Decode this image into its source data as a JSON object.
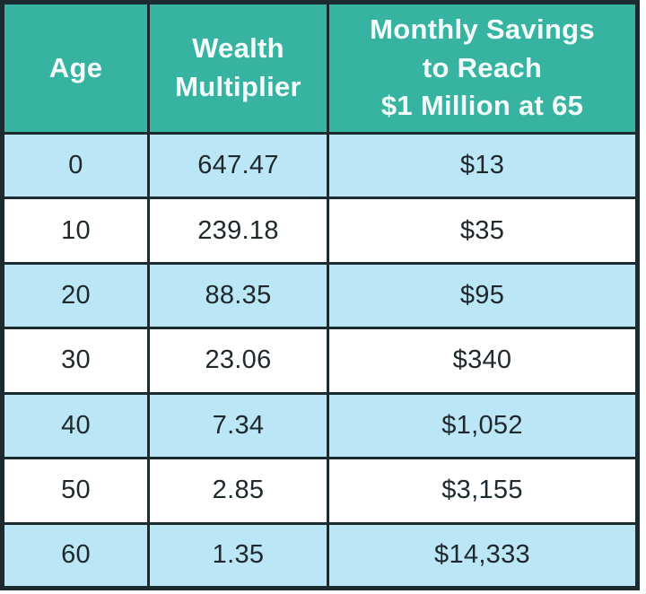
{
  "colors": {
    "header_bg": "#37b3a2",
    "header_text": "#f4fcfa",
    "row_alt_bg": "#bae6f6",
    "row_bg": "#ffffff",
    "border": "#1b2b2f",
    "cell_text": "#1f282c"
  },
  "table": {
    "header": [
      {
        "label": "Age",
        "lines": [
          "Age"
        ]
      },
      {
        "label": "Wealth Multiplier",
        "lines": [
          "Wealth",
          "Multiplier"
        ]
      },
      {
        "label": "Monthly Savings to Reach $1 Million at 65",
        "lines": [
          "Monthly Savings",
          "to Reach",
          "$1 Million at 65"
        ]
      }
    ],
    "rows": [
      {
        "age": "0",
        "multiplier": "647.47",
        "monthly_savings": "$13"
      },
      {
        "age": "10",
        "multiplier": "239.18",
        "monthly_savings": "$35"
      },
      {
        "age": "20",
        "multiplier": "88.35",
        "monthly_savings": "$95"
      },
      {
        "age": "30",
        "multiplier": "23.06",
        "monthly_savings": "$340"
      },
      {
        "age": "40",
        "multiplier": "7.34",
        "monthly_savings": "$1,052"
      },
      {
        "age": "50",
        "multiplier": "2.85",
        "monthly_savings": "$3,155"
      },
      {
        "age": "60",
        "multiplier": "1.35",
        "monthly_savings": "$14,333"
      }
    ]
  },
  "chart_data": {
    "type": "table",
    "title": "",
    "columns": [
      "Age",
      "Wealth Multiplier",
      "Monthly Savings to Reach $1 Million at 65"
    ],
    "rows": [
      [
        0,
        647.47,
        "$13"
      ],
      [
        10,
        239.18,
        "$35"
      ],
      [
        20,
        88.35,
        "$95"
      ],
      [
        30,
        23.06,
        "$340"
      ],
      [
        40,
        7.34,
        "$1,052"
      ],
      [
        50,
        2.85,
        "$3,155"
      ],
      [
        60,
        1.35,
        "$14,333"
      ]
    ]
  }
}
